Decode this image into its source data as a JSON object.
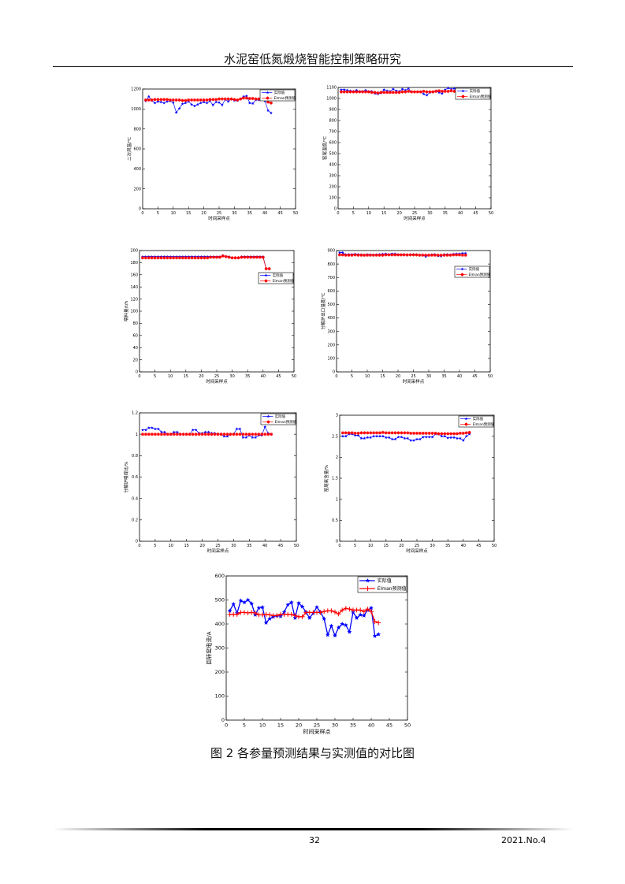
{
  "header": {
    "title": "水泥窑低氮煅烧智能控制策略研究"
  },
  "caption": "图 2 各参量预测结果与实测值的对比图",
  "footer": {
    "page": "32",
    "issue": "2021.No.4"
  },
  "colors": {
    "actual": "#0000ff",
    "predicted": "#ff0000"
  },
  "chart_data": [
    {
      "type": "line",
      "xlabel": "时间采样点",
      "ylabel": "二次风温/℃",
      "xlim": [
        0,
        50
      ],
      "ylim": [
        0,
        1200
      ],
      "xticks": [
        0,
        5,
        10,
        15,
        20,
        25,
        30,
        35,
        40,
        45,
        50
      ],
      "yticks": [
        0,
        200,
        400,
        600,
        800,
        1000,
        1200
      ],
      "legend": "top-right",
      "series": [
        {
          "name": "实际值",
          "marker": "star",
          "values": [
            1080,
            1125,
            1085,
            1060,
            1075,
            1070,
            1060,
            1075,
            1080,
            1065,
            965,
            1005,
            1050,
            1060,
            1075,
            1045,
            1030,
            1045,
            1060,
            1070,
            1060,
            1080,
            1040,
            1070,
            1065,
            1040,
            1095,
            1075,
            1100,
            1085,
            1085,
            1100,
            1125,
            1130,
            1060,
            1055,
            1090,
            1090,
            1105,
            1080,
            985,
            960
          ]
        },
        {
          "name": "Elman预测值",
          "marker": "asterisk",
          "values": [
            1090,
            1090,
            1090,
            1095,
            1095,
            1095,
            1095,
            1095,
            1090,
            1090,
            1090,
            1090,
            1085,
            1085,
            1090,
            1090,
            1090,
            1090,
            1090,
            1090,
            1090,
            1095,
            1095,
            1095,
            1100,
            1100,
            1100,
            1100,
            1100,
            1095,
            1090,
            1100,
            1110,
            1110,
            1105,
            1105,
            1100,
            1100,
            1105,
            1095,
            1070,
            1060
          ]
        }
      ]
    },
    {
      "type": "line",
      "xlabel": "时间采样点",
      "ylabel": "窑尾温度/℃",
      "xlim": [
        0,
        50
      ],
      "ylim": [
        0,
        1100
      ],
      "xticks": [
        0,
        5,
        10,
        15,
        20,
        25,
        30,
        35,
        40,
        45,
        50
      ],
      "yticks": [
        0,
        100,
        200,
        300,
        400,
        500,
        600,
        700,
        800,
        900,
        1000,
        1100
      ],
      "legend": "top-right",
      "series": [
        {
          "name": "实际值",
          "marker": "star",
          "values": [
            1080,
            1080,
            1075,
            1070,
            1065,
            1075,
            1065,
            1065,
            1075,
            1065,
            1065,
            1045,
            1040,
            1050,
            1080,
            1070,
            1065,
            1085,
            1070,
            1065,
            1085,
            1075,
            1090,
            1060,
            1060,
            1060,
            1060,
            1040,
            1030,
            1055,
            1060,
            1070,
            1055,
            1045,
            1080,
            1095,
            1085,
            1090,
            1075,
            1070
          ]
        },
        {
          "name": "Elman预测值",
          "marker": "asterisk",
          "values": [
            1060,
            1060,
            1060,
            1060,
            1060,
            1060,
            1060,
            1060,
            1060,
            1060,
            1055,
            1055,
            1050,
            1055,
            1055,
            1055,
            1055,
            1055,
            1055,
            1055,
            1060,
            1060,
            1065,
            1060,
            1060,
            1060,
            1060,
            1065,
            1060,
            1060,
            1060,
            1065,
            1070,
            1065,
            1065,
            1065,
            1070,
            1065,
            1065,
            1065
          ]
        }
      ]
    },
    {
      "type": "line",
      "xlabel": "时间采样点",
      "ylabel": "喂料量/t/h",
      "xlim": [
        0,
        50
      ],
      "ylim": [
        0,
        200
      ],
      "xticks": [
        0,
        5,
        10,
        15,
        20,
        25,
        30,
        35,
        40,
        45,
        50
      ],
      "yticks": [
        0,
        20,
        40,
        60,
        80,
        100,
        120,
        140,
        160,
        180,
        200
      ],
      "legend": "right",
      "series": [
        {
          "name": "实际值",
          "marker": "star",
          "values": [
            190,
            190,
            190,
            190,
            190,
            190,
            190,
            190,
            190,
            190,
            190,
            190,
            190,
            190,
            190,
            190,
            190,
            190,
            190,
            190,
            190,
            190,
            190,
            190,
            190,
            190,
            192,
            190,
            190,
            188,
            188,
            188,
            190,
            190,
            190,
            190,
            190,
            190,
            190,
            190,
            170,
            170
          ]
        },
        {
          "name": "Elman预测值",
          "marker": "asterisk",
          "values": [
            188,
            188,
            188,
            188,
            188,
            188,
            188,
            188,
            188,
            188,
            188,
            188,
            188,
            188,
            188,
            188,
            188,
            188,
            188,
            188,
            188,
            188,
            189,
            189,
            189,
            189,
            191,
            190,
            189,
            188,
            188,
            188,
            189,
            189,
            189,
            189,
            189,
            189,
            189,
            189,
            170,
            170
          ]
        }
      ]
    },
    {
      "type": "line",
      "xlabel": "时间采样点",
      "ylabel": "分解炉出口温度/℃",
      "xlim": [
        0,
        50
      ],
      "ylim": [
        0,
        900
      ],
      "xticks": [
        0,
        5,
        10,
        15,
        20,
        25,
        30,
        35,
        40,
        45,
        50
      ],
      "yticks": [
        0,
        100,
        200,
        300,
        400,
        500,
        600,
        700,
        800,
        900
      ],
      "legend": "right",
      "series": [
        {
          "name": "实际值",
          "marker": "star",
          "values": [
            885,
            885,
            870,
            872,
            872,
            874,
            872,
            870,
            865,
            872,
            870,
            868,
            870,
            872,
            874,
            876,
            872,
            876,
            876,
            872,
            870,
            872,
            865,
            870,
            872,
            870,
            866,
            868,
            855,
            865,
            870,
            872,
            860,
            858,
            872,
            872,
            868,
            874,
            876,
            876,
            880,
            880
          ]
        },
        {
          "name": "Elman预测值",
          "marker": "asterisk",
          "values": [
            868,
            868,
            866,
            866,
            866,
            868,
            866,
            866,
            866,
            866,
            866,
            866,
            866,
            866,
            866,
            868,
            868,
            868,
            868,
            868,
            868,
            868,
            868,
            868,
            868,
            868,
            866,
            866,
            866,
            866,
            866,
            866,
            866,
            866,
            866,
            866,
            866,
            868,
            868,
            868,
            866,
            866
          ]
        }
      ]
    },
    {
      "type": "line",
      "xlabel": "时间采样点",
      "ylabel": "分解炉喂煤比/%",
      "xlim": [
        0,
        50
      ],
      "ylim": [
        0,
        1.2
      ],
      "xticks": [
        0,
        5,
        10,
        15,
        20,
        25,
        30,
        35,
        40,
        45,
        50
      ],
      "yticks": [
        0,
        0.2,
        0.4,
        0.6,
        0.8,
        1,
        1.2
      ],
      "legend": "top-right",
      "series": [
        {
          "name": "实际值",
          "marker": "star",
          "values": [
            1.04,
            1.04,
            1.06,
            1.06,
            1.05,
            1.05,
            1.02,
            1.02,
            1.0,
            1.0,
            1.02,
            1.02,
            1.0,
            1.0,
            1.0,
            1.0,
            1.04,
            1.04,
            1.01,
            1.01,
            1.02,
            1.02,
            1.01,
            1.01,
            1.0,
            1.0,
            0.98,
            0.98,
            1.0,
            1.0,
            1.05,
            1.05,
            0.97,
            0.97,
            0.99,
            0.97,
            0.97,
            0.99,
            0.99,
            1.07,
            1.01,
            1.0
          ]
        },
        {
          "name": "Elman预测值",
          "marker": "asterisk",
          "values": [
            1.0,
            1.0,
            1.0,
            1.0,
            1.0,
            1.0,
            1.0,
            1.0,
            1.0,
            1.0,
            1.0,
            1.0,
            1.0,
            1.0,
            1.0,
            1.0,
            1.0,
            1.0,
            1.0,
            1.0,
            1.0,
            1.0,
            1.0,
            1.0,
            1.0,
            1.0,
            1.0,
            1.0,
            1.0,
            1.0,
            1.0,
            1.0,
            1.0,
            1.0,
            1.0,
            1.0,
            1.0,
            1.0,
            1.0,
            1.0,
            1.0,
            1.0
          ]
        }
      ]
    },
    {
      "type": "line",
      "xlabel": "时间采样点",
      "ylabel": "窑尾氧含量/%",
      "xlim": [
        0,
        50
      ],
      "ylim": [
        0,
        3
      ],
      "xticks": [
        0,
        5,
        10,
        15,
        20,
        25,
        30,
        35,
        40,
        45,
        50
      ],
      "yticks": [
        0,
        0.5,
        1,
        1.5,
        2,
        2.5,
        3
      ],
      "legend": "top-right",
      "series": [
        {
          "name": "实际值",
          "marker": "star",
          "values": [
            2.5,
            2.5,
            2.55,
            2.55,
            2.52,
            2.52,
            2.45,
            2.45,
            2.47,
            2.47,
            2.5,
            2.5,
            2.5,
            2.5,
            2.47,
            2.47,
            2.43,
            2.43,
            2.48,
            2.48,
            2.45,
            2.45,
            2.4,
            2.4,
            2.43,
            2.43,
            2.48,
            2.48,
            2.48,
            2.48,
            2.55,
            2.55,
            2.5,
            2.5,
            2.46,
            2.47,
            2.47,
            2.45,
            2.45,
            2.4,
            2.5,
            2.55
          ]
        },
        {
          "name": "Elman预测值",
          "marker": "asterisk",
          "values": [
            2.58,
            2.58,
            2.58,
            2.58,
            2.57,
            2.57,
            2.58,
            2.58,
            2.58,
            2.58,
            2.58,
            2.58,
            2.58,
            2.59,
            2.58,
            2.58,
            2.58,
            2.58,
            2.58,
            2.58,
            2.58,
            2.58,
            2.57,
            2.57,
            2.57,
            2.57,
            2.57,
            2.57,
            2.57,
            2.57,
            2.57,
            2.56,
            2.56,
            2.56,
            2.56,
            2.56,
            2.56,
            2.56,
            2.57,
            2.57,
            2.58,
            2.59
          ]
        }
      ]
    },
    {
      "type": "line",
      "xlabel": "时间采样点",
      "ylabel": "回转窑电流/A",
      "xlim": [
        0,
        50
      ],
      "ylim": [
        0,
        600
      ],
      "xticks": [
        0,
        5,
        10,
        15,
        20,
        25,
        30,
        35,
        40,
        45,
        50
      ],
      "yticks": [
        0,
        100,
        200,
        300,
        400,
        500,
        600
      ],
      "legend": "top-right",
      "series": [
        {
          "name": "实际值",
          "marker": "star",
          "values": [
            455,
            483,
            445,
            497,
            490,
            500,
            485,
            438,
            467,
            470,
            405,
            422,
            430,
            435,
            432,
            450,
            480,
            490,
            425,
            487,
            472,
            450,
            425,
            445,
            470,
            450,
            422,
            355,
            392,
            352,
            385,
            400,
            395,
            367,
            450,
            425,
            438,
            435,
            458,
            467,
            350,
            357
          ]
        },
        {
          "name": "Elman预测值",
          "marker": "plus",
          "values": [
            440,
            440,
            440,
            448,
            448,
            446,
            448,
            446,
            438,
            438,
            440,
            438,
            435,
            435,
            440,
            440,
            440,
            440,
            435,
            430,
            430,
            448,
            448,
            448,
            448,
            448,
            452,
            455,
            455,
            450,
            442,
            458,
            465,
            462,
            458,
            458,
            458,
            452,
            462,
            452,
            410,
            405
          ]
        }
      ]
    }
  ]
}
